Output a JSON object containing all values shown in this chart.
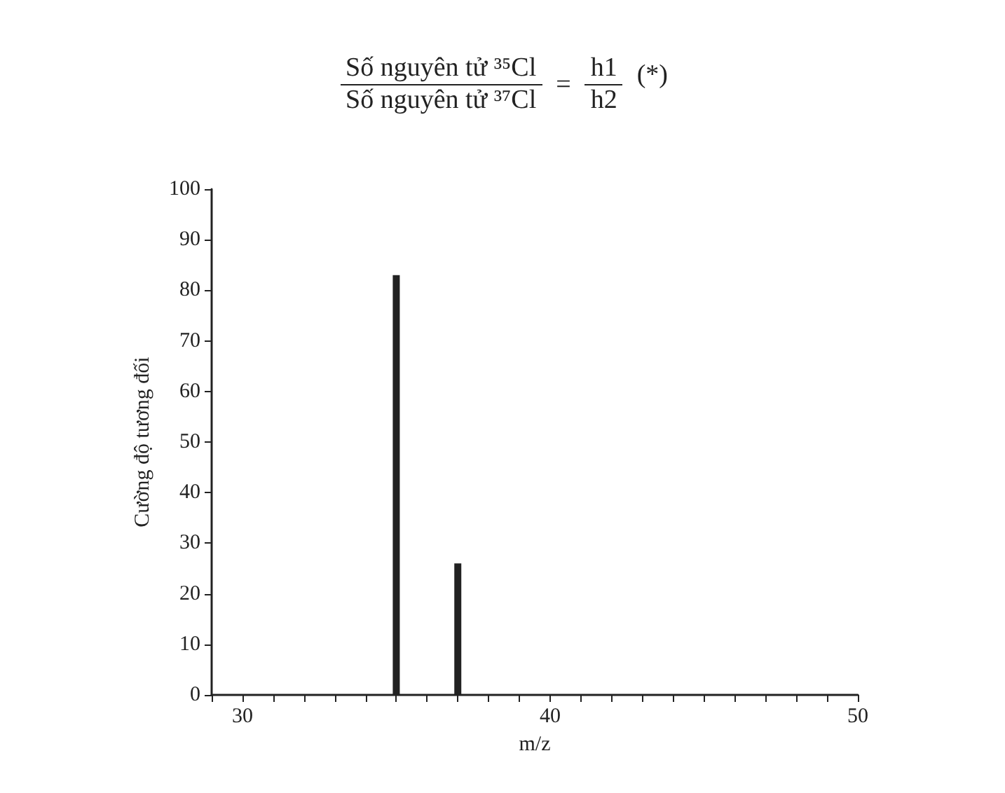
{
  "chart_data": {
    "type": "bar",
    "annotations": [
      "Số nguyên tử ³⁵Cl",
      "Số nguyên tử ³⁷Cl",
      "=",
      "h1",
      "h2",
      "(*)"
    ],
    "xlabel": "m/z",
    "ylabel": "Cường độ tương đối",
    "x": [
      35,
      37
    ],
    "values": [
      83,
      26
    ],
    "color": "#222222",
    "xlim": [
      29,
      50
    ],
    "xticks": [
      {
        "value": 29,
        "label": null
      },
      30,
      {
        "value": 31,
        "label": null
      },
      {
        "value": 32,
        "label": null
      },
      {
        "value": 33,
        "label": null
      },
      {
        "value": 34,
        "label": null
      },
      {
        "value": 35,
        "label": null
      },
      {
        "value": 36,
        "label": null
      },
      {
        "value": 37,
        "label": null
      },
      {
        "value": 38,
        "label": null
      },
      {
        "value": 39,
        "label": null
      },
      40,
      {
        "value": 41,
        "label": null
      },
      {
        "value": 42,
        "label": null
      },
      {
        "value": 43,
        "label": null
      },
      {
        "value": 44,
        "label": null
      },
      {
        "value": 45,
        "label": null
      },
      {
        "value": 46,
        "label": null
      },
      {
        "value": 47,
        "label": null
      },
      {
        "value": 48,
        "label": null
      },
      {
        "value": 49,
        "label": null
      },
      50
    ],
    "ylim": [
      0,
      100
    ],
    "yticks": [
      0,
      10,
      20,
      30,
      40,
      50,
      60,
      70,
      80,
      90,
      100
    ],
    "grid": false
  }
}
